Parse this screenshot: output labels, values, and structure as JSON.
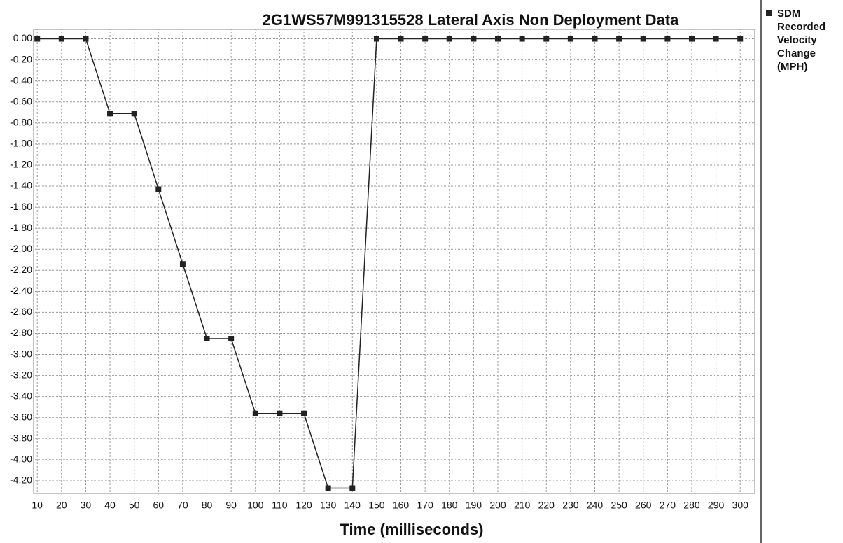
{
  "chart_data": {
    "type": "line",
    "title": "2G1WS57M991315528  Lateral Axis Non Deployment Data",
    "x_label": "Time (milliseconds)",
    "x": [
      10,
      20,
      30,
      40,
      50,
      60,
      70,
      80,
      90,
      100,
      110,
      120,
      130,
      140,
      150,
      160,
      170,
      180,
      190,
      200,
      210,
      220,
      230,
      240,
      250,
      260,
      270,
      280,
      290,
      300
    ],
    "series": [
      {
        "name": "SDM Recorded Velocity Change (MPH)",
        "color": "#222222",
        "values": [
          0,
          0,
          0,
          -0.71,
          -0.71,
          -1.43,
          -2.14,
          -2.85,
          -2.85,
          -3.56,
          -3.56,
          -3.56,
          -4.27,
          -4.27,
          0,
          0,
          0,
          0,
          0,
          0,
          0,
          0,
          0,
          0,
          0,
          0,
          0,
          0,
          0,
          0
        ]
      }
    ],
    "xlim": [
      8.5,
      306
    ],
    "xticks": [
      10,
      20,
      30,
      40,
      50,
      60,
      70,
      80,
      90,
      100,
      110,
      120,
      130,
      140,
      150,
      160,
      170,
      180,
      190,
      200,
      210,
      220,
      230,
      240,
      250,
      260,
      270,
      280,
      290,
      300
    ],
    "ylim": [
      -4.32,
      0.09
    ],
    "yticks": [
      {
        "value": 0,
        "label": "0.00"
      },
      {
        "value": -0.2,
        "label": "-0.20"
      },
      {
        "value": -0.4,
        "label": "-0.40"
      },
      {
        "value": -0.6,
        "label": "-0.60"
      },
      {
        "value": -0.8,
        "label": "-0.80"
      },
      {
        "value": -1.0,
        "label": "-1.00"
      },
      {
        "value": -1.2,
        "label": "-1.20"
      },
      {
        "value": -1.4,
        "label": "-1.40"
      },
      {
        "value": -1.6,
        "label": "-1.60"
      },
      {
        "value": -1.8,
        "label": "-1.80"
      },
      {
        "value": -2.0,
        "label": "-2.00"
      },
      {
        "value": -2.2,
        "label": "-2.20"
      },
      {
        "value": -2.4,
        "label": "-2.40"
      },
      {
        "value": -2.6,
        "label": "-2.60"
      },
      {
        "value": -2.8,
        "label": "-2.80"
      },
      {
        "value": -3.0,
        "label": "-3.00"
      },
      {
        "value": -3.2,
        "label": "-3.20"
      },
      {
        "value": -3.4,
        "label": "-3.40"
      },
      {
        "value": -3.6,
        "label": "-3.60"
      },
      {
        "value": -3.8,
        "label": "-3.80"
      },
      {
        "value": -4.0,
        "label": "-4.00"
      },
      {
        "value": -4.2,
        "label": "-4.20"
      }
    ],
    "grid": true
  }
}
